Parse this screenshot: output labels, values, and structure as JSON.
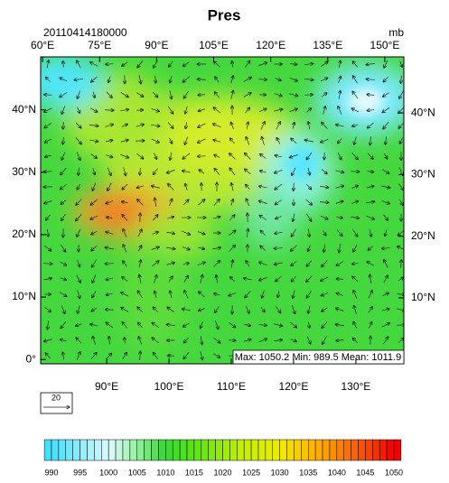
{
  "map": {
    "title": "Pres",
    "timestamp": "20110414180000",
    "units": "mb",
    "stats": "Max: 1050.2 Min: 989.5 Mean: 1011.9",
    "reference_vector": 20,
    "xlim": [
      79.4,
      137.7
    ],
    "ylim": [
      -0.7,
      48.5
    ],
    "x2lim": [
      59.5,
      155
    ],
    "y2lim": [
      -0.7,
      49.1
    ],
    "bottom_ticks": [
      {
        "value": 90,
        "label": "90°E"
      },
      {
        "value": 100,
        "label": "100°E"
      },
      {
        "value": 110,
        "label": "110°E"
      },
      {
        "value": 120,
        "label": "120°E"
      },
      {
        "value": 130,
        "label": "130°E"
      }
    ],
    "left_ticks": [
      {
        "value": 0,
        "label": "0°"
      },
      {
        "value": 10,
        "label": "10°N"
      },
      {
        "value": 20,
        "label": "20°N"
      },
      {
        "value": 30,
        "label": "30°N"
      },
      {
        "value": 40,
        "label": "40°N"
      }
    ],
    "top_ticks": [
      {
        "value": 60,
        "label": "60°E"
      },
      {
        "value": 75,
        "label": "75°E"
      },
      {
        "value": 90,
        "label": "90°E"
      },
      {
        "value": 105,
        "label": "105°E"
      },
      {
        "value": 120,
        "label": "120°E"
      },
      {
        "value": 135,
        "label": "135°E"
      },
      {
        "value": 150,
        "label": "150°E"
      }
    ],
    "right_ticks": [
      {
        "value": 10,
        "label": "10°N"
      },
      {
        "value": 20,
        "label": "20°N"
      },
      {
        "value": 30,
        "label": "30°N"
      },
      {
        "value": 40,
        "label": "40°N"
      }
    ],
    "colorbar_levels": [
      990,
      995,
      1000,
      1005,
      1010,
      1015,
      1020,
      1025,
      1030,
      1035,
      1040,
      1045,
      1050
    ]
  }
}
